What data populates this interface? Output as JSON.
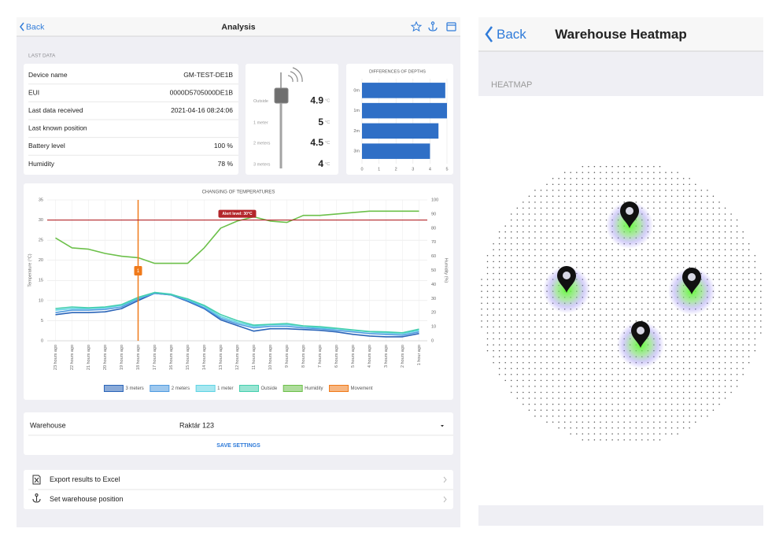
{
  "analysis": {
    "back": "Back",
    "title": "Analysis",
    "section": "LAST DATA",
    "info": [
      {
        "label": "Device name",
        "value": "GM-TEST-DE1B"
      },
      {
        "label": "EUI",
        "value": "0000D5705000DE1B"
      },
      {
        "label": "Last data received",
        "value": "2021-04-16 08:24:06"
      },
      {
        "label": "Last known position"
      },
      {
        "label": "Battery level",
        "value": "100 %"
      },
      {
        "label": "Humidity",
        "value": "78 %"
      }
    ],
    "probe": {
      "unit": "°C",
      "readings": [
        {
          "label": "Outside",
          "value": 4.9
        },
        {
          "label": "1 meter",
          "value": 5
        },
        {
          "label": "2 meters",
          "value": 4.5
        },
        {
          "label": "3 meters",
          "value": 4
        }
      ]
    },
    "warehouse": {
      "label": "Warehouse",
      "value": "Raktár 123",
      "action": "SAVE SETTINGS"
    },
    "menu": [
      "Export results to Excel",
      "Set warehouse position"
    ]
  },
  "chart_data": [
    {
      "type": "bar",
      "orientation": "horizontal",
      "title": "DIFFERENCES OF DEPTHS",
      "categories": [
        "0m",
        "1m",
        "2m",
        "3m"
      ],
      "values": [
        4.9,
        5,
        4.5,
        4
      ],
      "color": "#2f6fc6",
      "xlim": [
        0,
        5
      ],
      "xticks": [
        0,
        1,
        2,
        3,
        4,
        5
      ],
      "grid": true
    },
    {
      "type": "line",
      "title": "CHANGING OF TEMPERATURES",
      "ylabel": "Temperature (°C)",
      "y2label": "Humidity (%)",
      "categories": [
        "23 hours ago",
        "22 hours ago",
        "21 hours ago",
        "20 hours ago",
        "19 hours ago",
        "18 hours ago",
        "17 hours ago",
        "16 hours ago",
        "15 hours ago",
        "14 hours ago",
        "13 hours ago",
        "12 hours ago",
        "11 hours ago",
        "10 hours ago",
        "9 hours ago",
        "8 hours ago",
        "7 hours ago",
        "6 hours ago",
        "5 hours ago",
        "4 hours ago",
        "3 hours ago",
        "2 hours ago",
        "1 hour ago"
      ],
      "ylim": [
        0,
        35
      ],
      "yticks": [
        0,
        5,
        10,
        15,
        20,
        25,
        30,
        35
      ],
      "y2lim": [
        0,
        100
      ],
      "y2ticks": [
        0,
        10,
        20,
        30,
        40,
        50,
        60,
        70,
        80,
        90,
        100
      ],
      "grid": true,
      "thresholds": [
        {
          "label": "Alert level: 30°C",
          "value": 30,
          "color": "#b3262b"
        }
      ],
      "series": [
        {
          "name": "3 meters",
          "color": "#2a64b8",
          "values": [
            6.5,
            7,
            7,
            7.2,
            8,
            10,
            11.8,
            11.4,
            9.8,
            8,
            5.2,
            3.8,
            2.4,
            3,
            3,
            2.8,
            2.6,
            2.2,
            1.6,
            1.2,
            1,
            1,
            1.8
          ]
        },
        {
          "name": "2 meters",
          "color": "#4f9be0",
          "values": [
            7,
            7.6,
            7.6,
            7.8,
            8.4,
            10.4,
            11.8,
            11.4,
            10,
            8.2,
            5.6,
            4.2,
            3.2,
            3.6,
            3.6,
            3.2,
            3,
            2.6,
            2.2,
            1.8,
            1.6,
            1.4,
            2.2
          ]
        },
        {
          "name": "1 meter",
          "color": "#5fd3e3",
          "values": [
            7.6,
            8,
            8,
            8.2,
            8.8,
            10.6,
            12,
            11.6,
            10.2,
            8.6,
            6,
            4.6,
            3.6,
            4,
            4,
            3.6,
            3.2,
            3,
            2.6,
            2.2,
            2,
            1.8,
            2.6
          ]
        },
        {
          "name": "Outside",
          "color": "#45cfae",
          "values": [
            8,
            8.4,
            8.2,
            8.4,
            9,
            10.8,
            12,
            11.5,
            10.4,
            8.8,
            6.5,
            5,
            3.9,
            4.1,
            4.3,
            3.7,
            3.5,
            3.1,
            2.7,
            2.3,
            2.2,
            2,
            2.9
          ]
        },
        {
          "name": "Humidity",
          "color": "#6cc04a",
          "axis": "y2",
          "values": [
            73,
            66,
            65,
            62,
            60,
            59,
            55,
            55,
            55,
            66,
            80,
            85,
            88,
            85,
            84,
            89,
            89,
            90,
            91,
            92,
            92,
            92,
            92
          ]
        },
        {
          "name": "Movement",
          "color": "#f07a1a",
          "style": "vline",
          "values": [
            null,
            null,
            null,
            null,
            null,
            1,
            null,
            null,
            null,
            null,
            null,
            null,
            null,
            null,
            null,
            null,
            null,
            null,
            null,
            null,
            null,
            null,
            null
          ]
        }
      ]
    }
  ],
  "heatmap": {
    "back": "Back",
    "title": "Warehouse Heatmap",
    "section": "HEATMAP"
  }
}
